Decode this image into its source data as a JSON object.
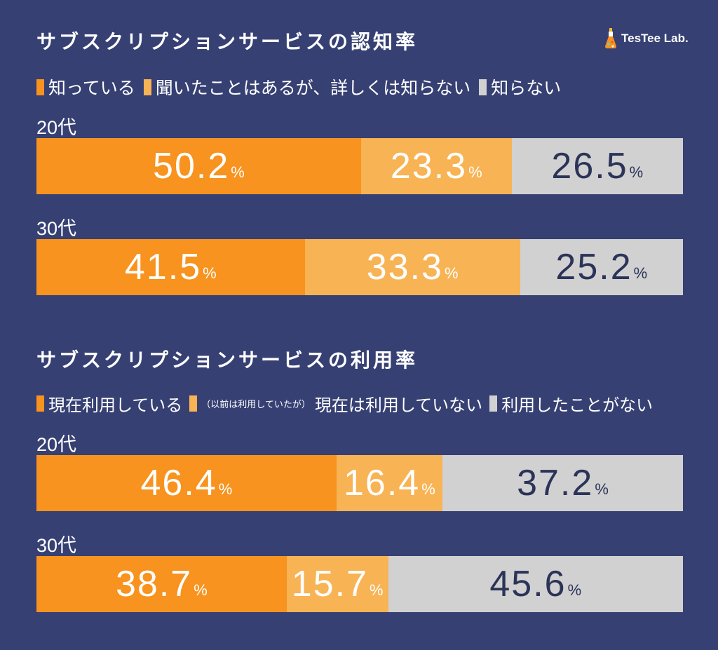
{
  "brand": {
    "name": "TesTee Lab."
  },
  "colors": {
    "background": "#364073",
    "orange": "#f7931e",
    "light_orange": "#f8b354",
    "gray": "#d1d1d1",
    "dark_text": "#2b3358",
    "white_text": "#ffffff"
  },
  "unit": "%",
  "chart_data": [
    {
      "type": "bar",
      "orientation": "horizontal",
      "stacked": "100%",
      "title": "サブスクリプションサービスの認知率",
      "legend": {
        "placement": "top-left",
        "items": [
          {
            "name": "知っている",
            "color": "#f7931e"
          },
          {
            "name": "聞いたことはあるが、詳しくは知らない",
            "color": "#f8b354"
          },
          {
            "name": "知らない",
            "color": "#d1d1d1"
          }
        ]
      },
      "categories": [
        "20代",
        "30代"
      ],
      "series": [
        {
          "name": "知っている",
          "values": [
            50.2,
            41.5
          ]
        },
        {
          "name": "聞いたことはあるが、詳しくは知らない",
          "values": [
            23.3,
            33.3
          ]
        },
        {
          "name": "知らない",
          "values": [
            26.5,
            25.2
          ]
        }
      ]
    },
    {
      "type": "bar",
      "orientation": "horizontal",
      "stacked": "100%",
      "title": "サブスクリプションサービスの利用率",
      "legend": {
        "placement": "top-left",
        "items": [
          {
            "name": "現在利用している",
            "color": "#f7931e"
          },
          {
            "name": "現在は利用していない",
            "note": "（以前は利用していたが）",
            "color": "#f8b354"
          },
          {
            "name": "利用したことがない",
            "color": "#d1d1d1"
          }
        ]
      },
      "categories": [
        "20代",
        "30代"
      ],
      "series": [
        {
          "name": "現在利用している",
          "values": [
            46.4,
            38.7
          ]
        },
        {
          "name": "現在は利用していない",
          "values": [
            16.4,
            15.7
          ]
        },
        {
          "name": "利用したことがない",
          "values": [
            37.2,
            45.6
          ]
        }
      ]
    }
  ]
}
